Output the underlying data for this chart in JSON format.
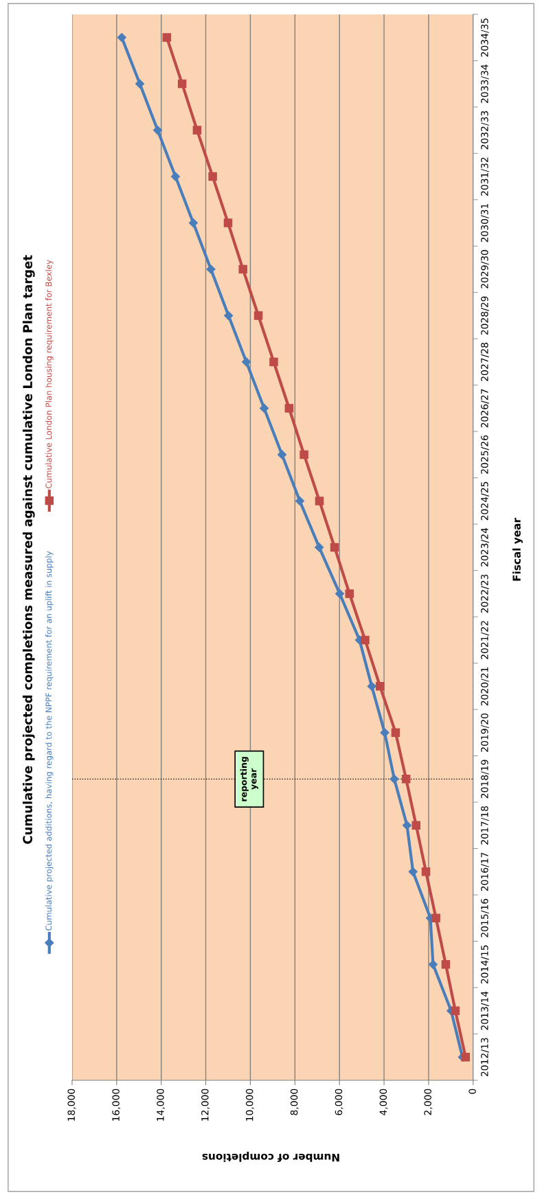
{
  "chart_data": {
    "type": "line",
    "orientation": "horizontal",
    "title": "Cumulative projected completions measured against cumulative London Plan target",
    "xlabel": "Number of completions",
    "ylabel": "Fiscal year",
    "categories": [
      "2034/35",
      "2033/34",
      "2032/33",
      "2031/32",
      "2030/31",
      "2029/30",
      "2028/29",
      "2027/28",
      "2026/27",
      "2025/26",
      "2024/25",
      "2023/24",
      "2022/23",
      "2021/22",
      "2020/21",
      "2019/20",
      "2018/19",
      "2017/18",
      "2016/17",
      "2015/16",
      "2014/15",
      "2013/14",
      "2012/13"
    ],
    "series": [
      {
        "name": "Cumulative projected additions, having regard to the NPPF requirement for an uplift in supply",
        "color": "#4a7ebb",
        "marker": "diamond",
        "values": [
          15770,
          14960,
          14160,
          13360,
          12560,
          11770,
          10980,
          10180,
          9380,
          8580,
          7780,
          6910,
          5990,
          5100,
          4550,
          3970,
          3540,
          2970,
          2700,
          1920,
          1800,
          990,
          480
        ]
      },
      {
        "name": "Cumulative London Plan housing requirement for Bexley",
        "color": "#be4b48",
        "marker": "square",
        "values": [
          13750,
          13060,
          12390,
          11690,
          11000,
          10330,
          9640,
          8950,
          8260,
          7590,
          6900,
          6220,
          5550,
          4850,
          4180,
          3480,
          3010,
          2560,
          2120,
          1670,
          1230,
          800,
          340
        ]
      }
    ],
    "xlim": [
      18000,
      0
    ],
    "xticks": [
      {
        "value": 18000,
        "label": "18,000"
      },
      {
        "value": 16000,
        "label": "16,000"
      },
      {
        "value": 14000,
        "label": "14,000"
      },
      {
        "value": 12000,
        "label": "12,000"
      },
      {
        "value": 10000,
        "label": "10,000"
      },
      {
        "value": 8000,
        "label": "8,000"
      },
      {
        "value": 6000,
        "label": "6,000"
      },
      {
        "value": 4000,
        "label": "4,000"
      },
      {
        "value": 2000,
        "label": "2,000"
      },
      0
    ],
    "grid": "x",
    "legend": "left",
    "line_style": "solid",
    "ref_lines": [
      {
        "axis": "y",
        "value": "2018/19",
        "label": "reporting\nyear",
        "color": "#000000",
        "line_style": "dotted"
      }
    ]
  }
}
